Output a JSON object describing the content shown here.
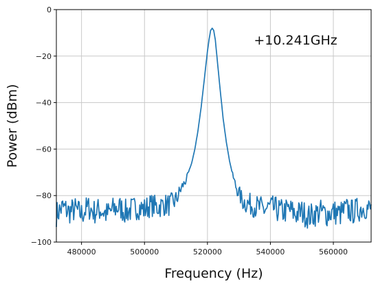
{
  "chart_data": {
    "type": "line",
    "title": "",
    "xlabel": "Frequency (Hz)",
    "ylabel": "Power (dBm)",
    "xlim": [
      472000,
      572000
    ],
    "ylim": [
      -100,
      0
    ],
    "x_ticks": [
      480000,
      500000,
      520000,
      540000,
      560000
    ],
    "x_tick_labels": [
      "480000",
      "500000",
      "520000",
      "540000",
      "560000"
    ],
    "y_ticks": [
      0,
      -20,
      -40,
      -60,
      -80,
      -100
    ],
    "y_tick_labels": [
      "0",
      "−20",
      "−40",
      "−60",
      "−80",
      "−100"
    ],
    "grid": true,
    "annotations": [
      {
        "text": "+10.241GHz",
        "x": 548000,
        "y": -13
      }
    ],
    "series": [
      {
        "color": "#1f77b4",
        "peak": {
          "x": 521500,
          "y": -8
        },
        "noise_floor": -86,
        "x": [
          472000,
          474000,
          476000,
          478000,
          480000,
          482000,
          484000,
          486000,
          488000,
          490000,
          492000,
          494000,
          496000,
          498000,
          500000,
          502000,
          504000,
          506000,
          508000,
          510000,
          511000,
          512000,
          513000,
          514000,
          515000,
          516000,
          517000,
          518000,
          519000,
          520000,
          520500,
          521000,
          521500,
          522000,
          522500,
          523000,
          524000,
          525000,
          526000,
          527000,
          528000,
          529000,
          530000,
          531000,
          532000,
          534000,
          536000,
          538000,
          540000,
          542000,
          544000,
          546000,
          548000,
          550000,
          552000,
          554000,
          556000,
          558000,
          560000,
          562000,
          564000,
          566000,
          568000,
          570000,
          572000
        ],
        "y": [
          -88,
          -85,
          -87,
          -86,
          -88,
          -85,
          -87,
          -86,
          -88,
          -86,
          -85,
          -87,
          -86,
          -85,
          -86,
          -84,
          -85,
          -84,
          -84,
          -82,
          -79,
          -76,
          -74,
          -70,
          -66,
          -60,
          -52,
          -42,
          -30,
          -18,
          -13,
          -9,
          -8,
          -9,
          -13,
          -20,
          -34,
          -47,
          -57,
          -65,
          -71,
          -76,
          -79,
          -82,
          -83,
          -84,
          -85,
          -86,
          -85,
          -86,
          -87,
          -86,
          -88,
          -87,
          -89,
          -88,
          -87,
          -88,
          -87,
          -88,
          -86,
          -87,
          -86,
          -85,
          -86
        ]
      }
    ]
  }
}
